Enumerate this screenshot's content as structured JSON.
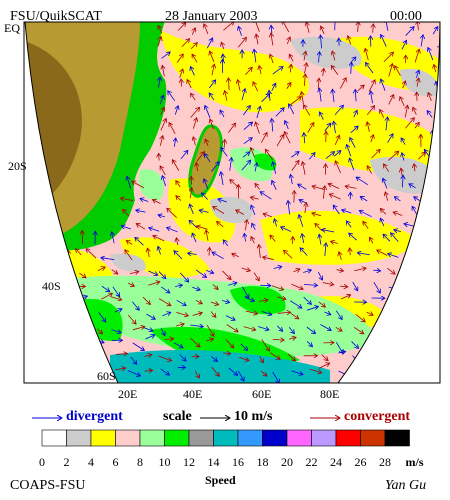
{
  "header": {
    "title": "FSU/QuikSCAT",
    "date": "28 January 2003",
    "time": "00:00"
  },
  "map": {
    "lat_labels": [
      "EQ",
      "20S",
      "40S",
      "60S"
    ],
    "lon_labels": [
      "20E",
      "40E",
      "60E",
      "80E"
    ]
  },
  "legend": {
    "divergent": "divergent",
    "scale": "scale",
    "scale_value": "10 m/s",
    "convergent": "convergent"
  },
  "colorbar": {
    "ticks": [
      0,
      2,
      4,
      6,
      8,
      10,
      12,
      14,
      16,
      18,
      20,
      22,
      24,
      26,
      28
    ],
    "unit": "m/s",
    "label": "Speed",
    "colors": [
      "#ffffff",
      "#cccccc",
      "#ffff00",
      "#ffcccc",
      "#99ff99",
      "#00ee00",
      "#999999",
      "#00bbbb",
      "#3399ff",
      "#0000cc",
      "#ff66ff",
      "#bb99ff",
      "#ff0000",
      "#cc3300",
      "#000000"
    ]
  },
  "footer": {
    "left": "COAPS-FSU",
    "right": "Yan Gu"
  }
}
